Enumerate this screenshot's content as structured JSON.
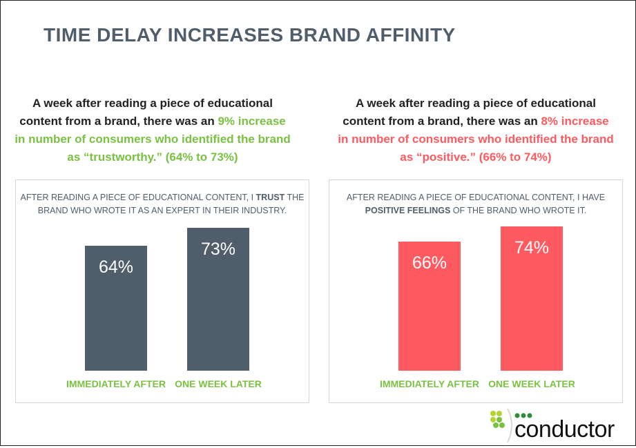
{
  "title": "TIME DELAY INCREASES BRAND AFFINITY",
  "left": {
    "intro_before": "A week after reading a piece of educational content from a brand, there was an ",
    "intro_highlight": "9% increase in number of consumers who identified the brand as “trustworthy.” (64% to 73%)",
    "highlight_color": "#7ac143",
    "question_before": "AFTER READING A PIECE OF EDUCATIONAL CONTENT, I ",
    "question_bold": "TRUST",
    "question_after": " THE BRAND WHO WROTE IT AS AN EXPERT IN THEIR INDUSTRY."
  },
  "right": {
    "intro_before": "A week after reading a piece of educational content from a brand, there was an ",
    "intro_highlight": "8% increase in number of consumers who identified the brand as “positive.” (66% to 74%)",
    "highlight_color": "#ff5a5f",
    "question_before": "AFTER READING A PIECE OF EDUCATIONAL CONTENT, I HAVE ",
    "question_bold": "POSITIVE FEELINGS",
    "question_after": " OF THE BRAND WHO WROTE IT."
  },
  "logo": {
    "text": "conductor"
  },
  "chart_data": [
    {
      "type": "bar",
      "categories": [
        "IMMEDIATELY AFTER",
        "ONE WEEK LATER"
      ],
      "values": [
        64,
        73
      ],
      "data_labels": [
        "64%",
        "73%"
      ],
      "color": "#505d6b",
      "ylim": [
        0,
        100
      ],
      "grid": false
    },
    {
      "type": "bar",
      "categories": [
        "IMMEDIATELY AFTER",
        "ONE WEEK LATER"
      ],
      "values": [
        66,
        74
      ],
      "data_labels": [
        "66%",
        "74%"
      ],
      "color": "#ff5a5f",
      "ylim": [
        0,
        100
      ],
      "grid": false
    }
  ]
}
